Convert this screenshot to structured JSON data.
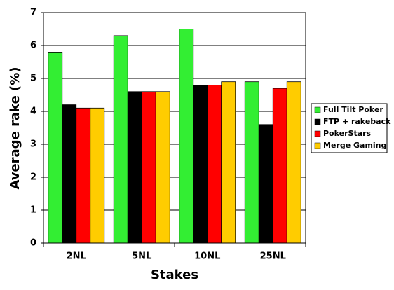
{
  "chart_data": {
    "type": "bar",
    "x_label": "Stakes",
    "y_label": "Average rake (%)",
    "categories": [
      "2NL",
      "5NL",
      "10NL",
      "25NL"
    ],
    "series": [
      {
        "name": "Full Tilt Poker",
        "color": "#33ee33",
        "values": [
          5.8,
          6.3,
          6.5,
          4.9
        ]
      },
      {
        "name": "FTP + rakeback",
        "color": "#000000",
        "values": [
          4.2,
          4.6,
          4.8,
          3.6
        ]
      },
      {
        "name": "PokerStars",
        "color": "#ff0000",
        "values": [
          4.1,
          4.6,
          4.8,
          4.7
        ]
      },
      {
        "name": "Merge Gaming",
        "color": "#ffcc00",
        "values": [
          4.1,
          4.6,
          4.9,
          4.9
        ]
      }
    ],
    "ylim": [
      0,
      7
    ],
    "yticks": [
      0,
      1,
      2,
      3,
      4,
      5,
      6,
      7
    ],
    "grid": true,
    "legend": "right"
  }
}
